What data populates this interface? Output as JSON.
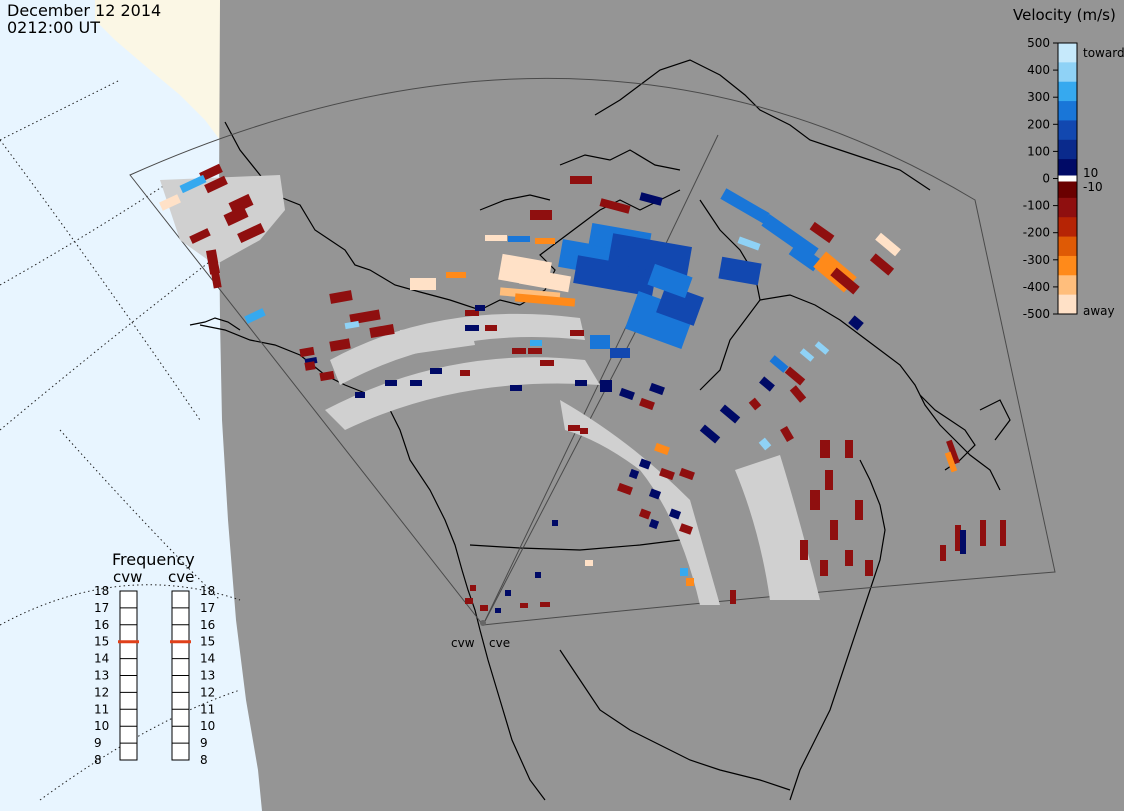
{
  "header": {
    "date": "December 12 2014",
    "time": "0212:00 UT"
  },
  "legend": {
    "title": "Velocity (m/s)",
    "ticks": [
      "500",
      "400",
      "300",
      "200",
      "100",
      "0",
      "-100",
      "-200",
      "-300",
      "-400",
      "-500"
    ],
    "tick_values": [
      500,
      400,
      300,
      200,
      100,
      0,
      -100,
      -200,
      -300,
      -400,
      -500
    ],
    "marker_labels": [
      "10",
      "-10"
    ],
    "end_labels": {
      "toward": "toward",
      "away": "away"
    },
    "colors": [
      "#c6e9fb",
      "#8fd2f6",
      "#36a9ef",
      "#1976d8",
      "#1248b0",
      "#0a2a8c",
      "#000a66",
      "#6a0000",
      "#8f0f0f",
      "#b62405",
      "#df5a05",
      "#ff8a1a",
      "#ffbe7c",
      "#ffe1c7"
    ]
  },
  "frequency": {
    "title": "Frequency",
    "radars": [
      "cvw",
      "cve"
    ],
    "scale": [
      "18",
      "17",
      "16",
      "15",
      "14",
      "13",
      "12",
      "11",
      "10",
      "9",
      "8"
    ],
    "scale_values": [
      18,
      17,
      16,
      15,
      14,
      13,
      12,
      11,
      10,
      9,
      8
    ],
    "current_mhz": [
      15,
      15
    ],
    "marker_color": "#e0401a"
  },
  "radar_labels": [
    "cvw",
    "cve"
  ],
  "colors": {
    "ocean": "#e8f5ff",
    "night": "#959595",
    "ground_scatter": "#d0d0d0",
    "coast": "#000000"
  }
}
